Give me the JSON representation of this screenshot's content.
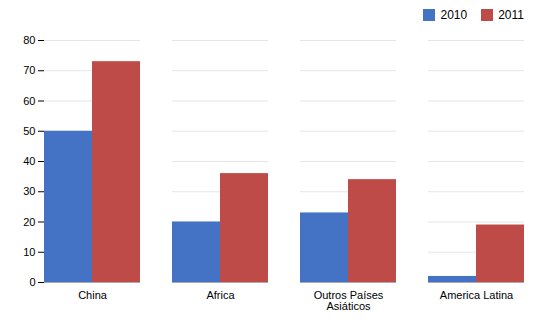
{
  "chart_data": {
    "type": "bar",
    "categories": [
      "China",
      "Africa",
      "Outros Países\nAsiáticos",
      "America Latina"
    ],
    "series": [
      {
        "name": "2010",
        "color": "#4472C4",
        "values": [
          50,
          20,
          23,
          2
        ]
      },
      {
        "name": "2011",
        "color": "#BE4B48",
        "values": [
          73,
          36,
          34,
          19
        ]
      }
    ],
    "ylim": [
      0,
      80
    ],
    "yticks": [
      0,
      10,
      20,
      30,
      40,
      50,
      60,
      70,
      80
    ],
    "grid": true,
    "legend": "upper right"
  }
}
